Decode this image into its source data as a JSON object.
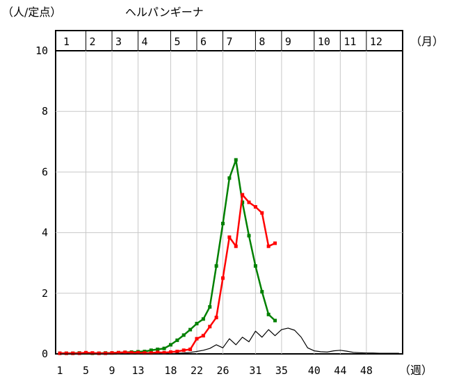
{
  "chart_data": {
    "type": "line",
    "title": "ヘルパンギーナ",
    "y_unit": "（人/定点）",
    "x_unit": "（週）",
    "month_unit": "（月）",
    "ylim": [
      0,
      10
    ],
    "xlim": [
      1,
      53
    ],
    "y_ticks": [
      "0",
      "2",
      "4",
      "6",
      "8",
      "10"
    ],
    "x_ticks": [
      {
        "week": 1,
        "label": "1"
      },
      {
        "week": 5,
        "label": "5"
      },
      {
        "week": 9,
        "label": "9"
      },
      {
        "week": 13,
        "label": "13"
      },
      {
        "week": 18,
        "label": "18"
      },
      {
        "week": 22,
        "label": "22"
      },
      {
        "week": 26,
        "label": "26"
      },
      {
        "week": 31,
        "label": "31"
      },
      {
        "week": 35,
        "label": "35"
      },
      {
        "week": 40,
        "label": "40"
      },
      {
        "week": 44,
        "label": "44"
      },
      {
        "week": 48,
        "label": "48"
      }
    ],
    "months": [
      {
        "label": "1",
        "start_week": 1,
        "end_week": 5
      },
      {
        "label": "2",
        "start_week": 5,
        "end_week": 9
      },
      {
        "label": "3",
        "start_week": 9,
        "end_week": 13
      },
      {
        "label": "4",
        "start_week": 13,
        "end_week": 18
      },
      {
        "label": "5",
        "start_week": 18,
        "end_week": 22
      },
      {
        "label": "6",
        "start_week": 22,
        "end_week": 26
      },
      {
        "label": "7",
        "start_week": 26,
        "end_week": 31
      },
      {
        "label": "8",
        "start_week": 31,
        "end_week": 35
      },
      {
        "label": "9",
        "start_week": 35,
        "end_week": 40
      },
      {
        "label": "10",
        "start_week": 40,
        "end_week": 44
      },
      {
        "label": "11",
        "start_week": 44,
        "end_week": 48
      },
      {
        "label": "12",
        "start_week": 48,
        "end_week": 53
      }
    ],
    "grid": true,
    "series": [
      {
        "color": "#008000",
        "marker": "square",
        "x": [
          1,
          2,
          3,
          4,
          5,
          6,
          7,
          8,
          9,
          10,
          11,
          12,
          13,
          14,
          15,
          16,
          17,
          18,
          19,
          20,
          21,
          22,
          23,
          24,
          25,
          26,
          27,
          28,
          29,
          30,
          31,
          32,
          33,
          34
        ],
        "values": [
          0.02,
          0.02,
          0.02,
          0.03,
          0.03,
          0.02,
          0.02,
          0.03,
          0.03,
          0.04,
          0.05,
          0.06,
          0.07,
          0.08,
          0.12,
          0.15,
          0.18,
          0.3,
          0.45,
          0.62,
          0.8,
          1.0,
          1.15,
          1.55,
          2.9,
          4.3,
          5.8,
          6.4,
          5.0,
          3.9,
          2.9,
          2.05,
          1.3,
          1.1
        ]
      },
      {
        "color": "#ff0000",
        "marker": "square",
        "x": [
          1,
          2,
          3,
          4,
          5,
          6,
          7,
          8,
          9,
          10,
          11,
          12,
          13,
          14,
          15,
          16,
          17,
          18,
          19,
          20,
          21,
          22,
          23,
          24,
          25,
          26,
          27,
          28,
          29,
          30,
          31,
          32,
          33,
          34
        ],
        "values": [
          0.02,
          0.02,
          0.02,
          0.02,
          0.04,
          0.03,
          0.02,
          0.02,
          0.03,
          0.04,
          0.05,
          0.04,
          0.04,
          0.03,
          0.03,
          0.05,
          0.04,
          0.06,
          0.08,
          0.12,
          0.15,
          0.5,
          0.6,
          0.9,
          1.2,
          2.5,
          3.85,
          3.55,
          5.25,
          5.0,
          4.85,
          4.65,
          3.55,
          3.65
        ]
      },
      {
        "color": "#000000",
        "marker": "none",
        "x": [
          1,
          2,
          3,
          4,
          5,
          6,
          7,
          8,
          9,
          10,
          11,
          12,
          13,
          14,
          15,
          16,
          17,
          18,
          19,
          20,
          21,
          22,
          23,
          24,
          25,
          26,
          27,
          28,
          29,
          30,
          31,
          32,
          33,
          34,
          35,
          36,
          37,
          38,
          39,
          40,
          41,
          42,
          43,
          44,
          45,
          46,
          47,
          48,
          49,
          50,
          51,
          52,
          53
        ],
        "values": [
          0,
          0,
          0,
          0,
          0,
          0,
          0,
          0,
          0,
          0,
          0,
          0,
          0,
          0,
          0,
          0,
          0,
          0,
          0.02,
          0.03,
          0.05,
          0.08,
          0.12,
          0.18,
          0.3,
          0.2,
          0.5,
          0.3,
          0.55,
          0.4,
          0.75,
          0.55,
          0.8,
          0.6,
          0.8,
          0.85,
          0.78,
          0.55,
          0.2,
          0.1,
          0.07,
          0.06,
          0.1,
          0.12,
          0.09,
          0.05,
          0.04,
          0.03,
          0.03,
          0.02,
          0.02,
          0.02,
          0.02
        ]
      }
    ]
  }
}
